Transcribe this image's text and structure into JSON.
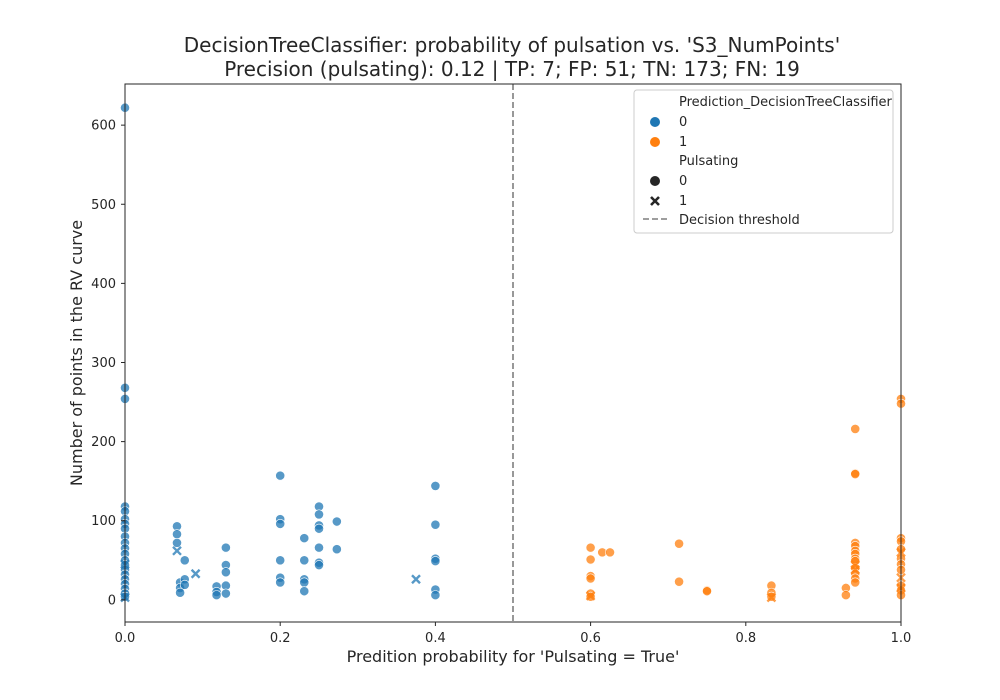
{
  "chart_data": {
    "type": "scatter",
    "title": "DecisionTreeClassifier: probability of pulsation vs. 'S3_NumPoints'",
    "subtitle": "Precision (pulsating): 0.12 | TP: 7; FP: 51; TN: 173; FN: 19",
    "xlabel": "Predition probability for 'Pulsating = True'",
    "ylabel": "Number of points in the RV curve",
    "xlim": [
      0,
      1
    ],
    "ylim": [
      -28,
      652
    ],
    "xticks": [
      {
        "value": 0.0,
        "label": "0.0"
      },
      {
        "value": 0.2,
        "label": "0.2"
      },
      {
        "value": 0.4,
        "label": "0.4"
      },
      {
        "value": 0.6,
        "label": "0.6"
      },
      {
        "value": 0.8,
        "label": "0.8"
      },
      {
        "value": 1.0,
        "label": "1.0"
      }
    ],
    "yticks": [
      {
        "value": 0,
        "label": "0"
      },
      {
        "value": 100,
        "label": "100"
      },
      {
        "value": 200,
        "label": "200"
      },
      {
        "value": 300,
        "label": "300"
      },
      {
        "value": 400,
        "label": "400"
      },
      {
        "value": 500,
        "label": "500"
      },
      {
        "value": 600,
        "label": "600"
      }
    ],
    "grid": false,
    "legend_position": "top-right",
    "decision_threshold": 0.5,
    "legend": {
      "hue_title": "Prediction_DecisionTreeClassifier",
      "hue_entries": [
        {
          "label": "0",
          "color": "#1f77b4"
        },
        {
          "label": "1",
          "color": "#ff7f0e"
        }
      ],
      "style_title": "Pulsating",
      "style_entries": [
        {
          "label": "0",
          "marker": "circle"
        },
        {
          "label": "1",
          "marker": "x"
        }
      ],
      "threshold_label": "Decision threshold"
    },
    "colors": {
      "pred0": "#1f77b4",
      "pred1": "#ff7f0e",
      "threshold": "#7f7f7f"
    },
    "series": [
      {
        "prediction": "0",
        "pulsating": "0",
        "points": [
          [
            0.0,
            622
          ],
          [
            0.0,
            268
          ],
          [
            0.0,
            254
          ],
          [
            0.0,
            118
          ],
          [
            0.0,
            112
          ],
          [
            0.0,
            102
          ],
          [
            0.0,
            96
          ],
          [
            0.0,
            90
          ],
          [
            0.0,
            80
          ],
          [
            0.0,
            72
          ],
          [
            0.0,
            65
          ],
          [
            0.0,
            58
          ],
          [
            0.0,
            50
          ],
          [
            0.0,
            44
          ],
          [
            0.0,
            38
          ],
          [
            0.0,
            32
          ],
          [
            0.0,
            26
          ],
          [
            0.0,
            20
          ],
          [
            0.0,
            14
          ],
          [
            0.0,
            8
          ],
          [
            0.0,
            4
          ],
          [
            0.067,
            93
          ],
          [
            0.067,
            83
          ],
          [
            0.067,
            72
          ],
          [
            0.071,
            22
          ],
          [
            0.071,
            15
          ],
          [
            0.071,
            9
          ],
          [
            0.077,
            50
          ],
          [
            0.077,
            26
          ],
          [
            0.077,
            19
          ],
          [
            0.118,
            17
          ],
          [
            0.118,
            10
          ],
          [
            0.118,
            6
          ],
          [
            0.13,
            66
          ],
          [
            0.13,
            44
          ],
          [
            0.13,
            35
          ],
          [
            0.13,
            18
          ],
          [
            0.13,
            8
          ],
          [
            0.2,
            157
          ],
          [
            0.2,
            102
          ],
          [
            0.2,
            96
          ],
          [
            0.2,
            50
          ],
          [
            0.2,
            28
          ],
          [
            0.2,
            22
          ],
          [
            0.231,
            78
          ],
          [
            0.231,
            50
          ],
          [
            0.231,
            26
          ],
          [
            0.231,
            22
          ],
          [
            0.231,
            11
          ],
          [
            0.25,
            118
          ],
          [
            0.25,
            108
          ],
          [
            0.25,
            94
          ],
          [
            0.25,
            90
          ],
          [
            0.25,
            66
          ],
          [
            0.25,
            47
          ],
          [
            0.25,
            44
          ],
          [
            0.273,
            99
          ],
          [
            0.273,
            64
          ],
          [
            0.4,
            144
          ],
          [
            0.4,
            95
          ],
          [
            0.4,
            52
          ],
          [
            0.4,
            49
          ],
          [
            0.4,
            13
          ],
          [
            0.4,
            6
          ]
        ]
      },
      {
        "prediction": "0",
        "pulsating": "1",
        "points": [
          [
            0.0,
            3
          ],
          [
            0.0,
            45
          ],
          [
            0.067,
            62
          ],
          [
            0.091,
            33
          ],
          [
            0.375,
            26
          ]
        ]
      },
      {
        "prediction": "1",
        "pulsating": "0",
        "points": [
          [
            0.6,
            66
          ],
          [
            0.6,
            51
          ],
          [
            0.6,
            30
          ],
          [
            0.6,
            27
          ],
          [
            0.6,
            8
          ],
          [
            0.6,
            4
          ],
          [
            0.615,
            60
          ],
          [
            0.625,
            60
          ],
          [
            0.714,
            71
          ],
          [
            0.714,
            23
          ],
          [
            0.75,
            12
          ],
          [
            0.75,
            11
          ],
          [
            0.833,
            18
          ],
          [
            0.833,
            9
          ],
          [
            0.833,
            4
          ],
          [
            0.929,
            15
          ],
          [
            0.929,
            6
          ],
          [
            0.941,
            216
          ],
          [
            0.941,
            160
          ],
          [
            0.941,
            159
          ],
          [
            0.941,
            72
          ],
          [
            0.941,
            68
          ],
          [
            0.941,
            62
          ],
          [
            0.941,
            58
          ],
          [
            0.941,
            52
          ],
          [
            0.941,
            49
          ],
          [
            0.941,
            40
          ],
          [
            0.941,
            33
          ],
          [
            0.941,
            27
          ],
          [
            0.941,
            22
          ],
          [
            1.0,
            254
          ],
          [
            1.0,
            248
          ],
          [
            1.0,
            78
          ],
          [
            1.0,
            74
          ],
          [
            1.0,
            64
          ],
          [
            1.0,
            52
          ],
          [
            1.0,
            45
          ],
          [
            1.0,
            38
          ],
          [
            1.0,
            18
          ],
          [
            1.0,
            12
          ],
          [
            1.0,
            6
          ]
        ]
      },
      {
        "prediction": "1",
        "pulsating": "1",
        "points": [
          [
            0.6,
            5
          ],
          [
            0.833,
            3
          ],
          [
            0.941,
            44
          ],
          [
            0.941,
            38
          ],
          [
            1.0,
            60
          ],
          [
            1.0,
            28
          ],
          [
            1.0,
            15
          ]
        ]
      }
    ]
  }
}
